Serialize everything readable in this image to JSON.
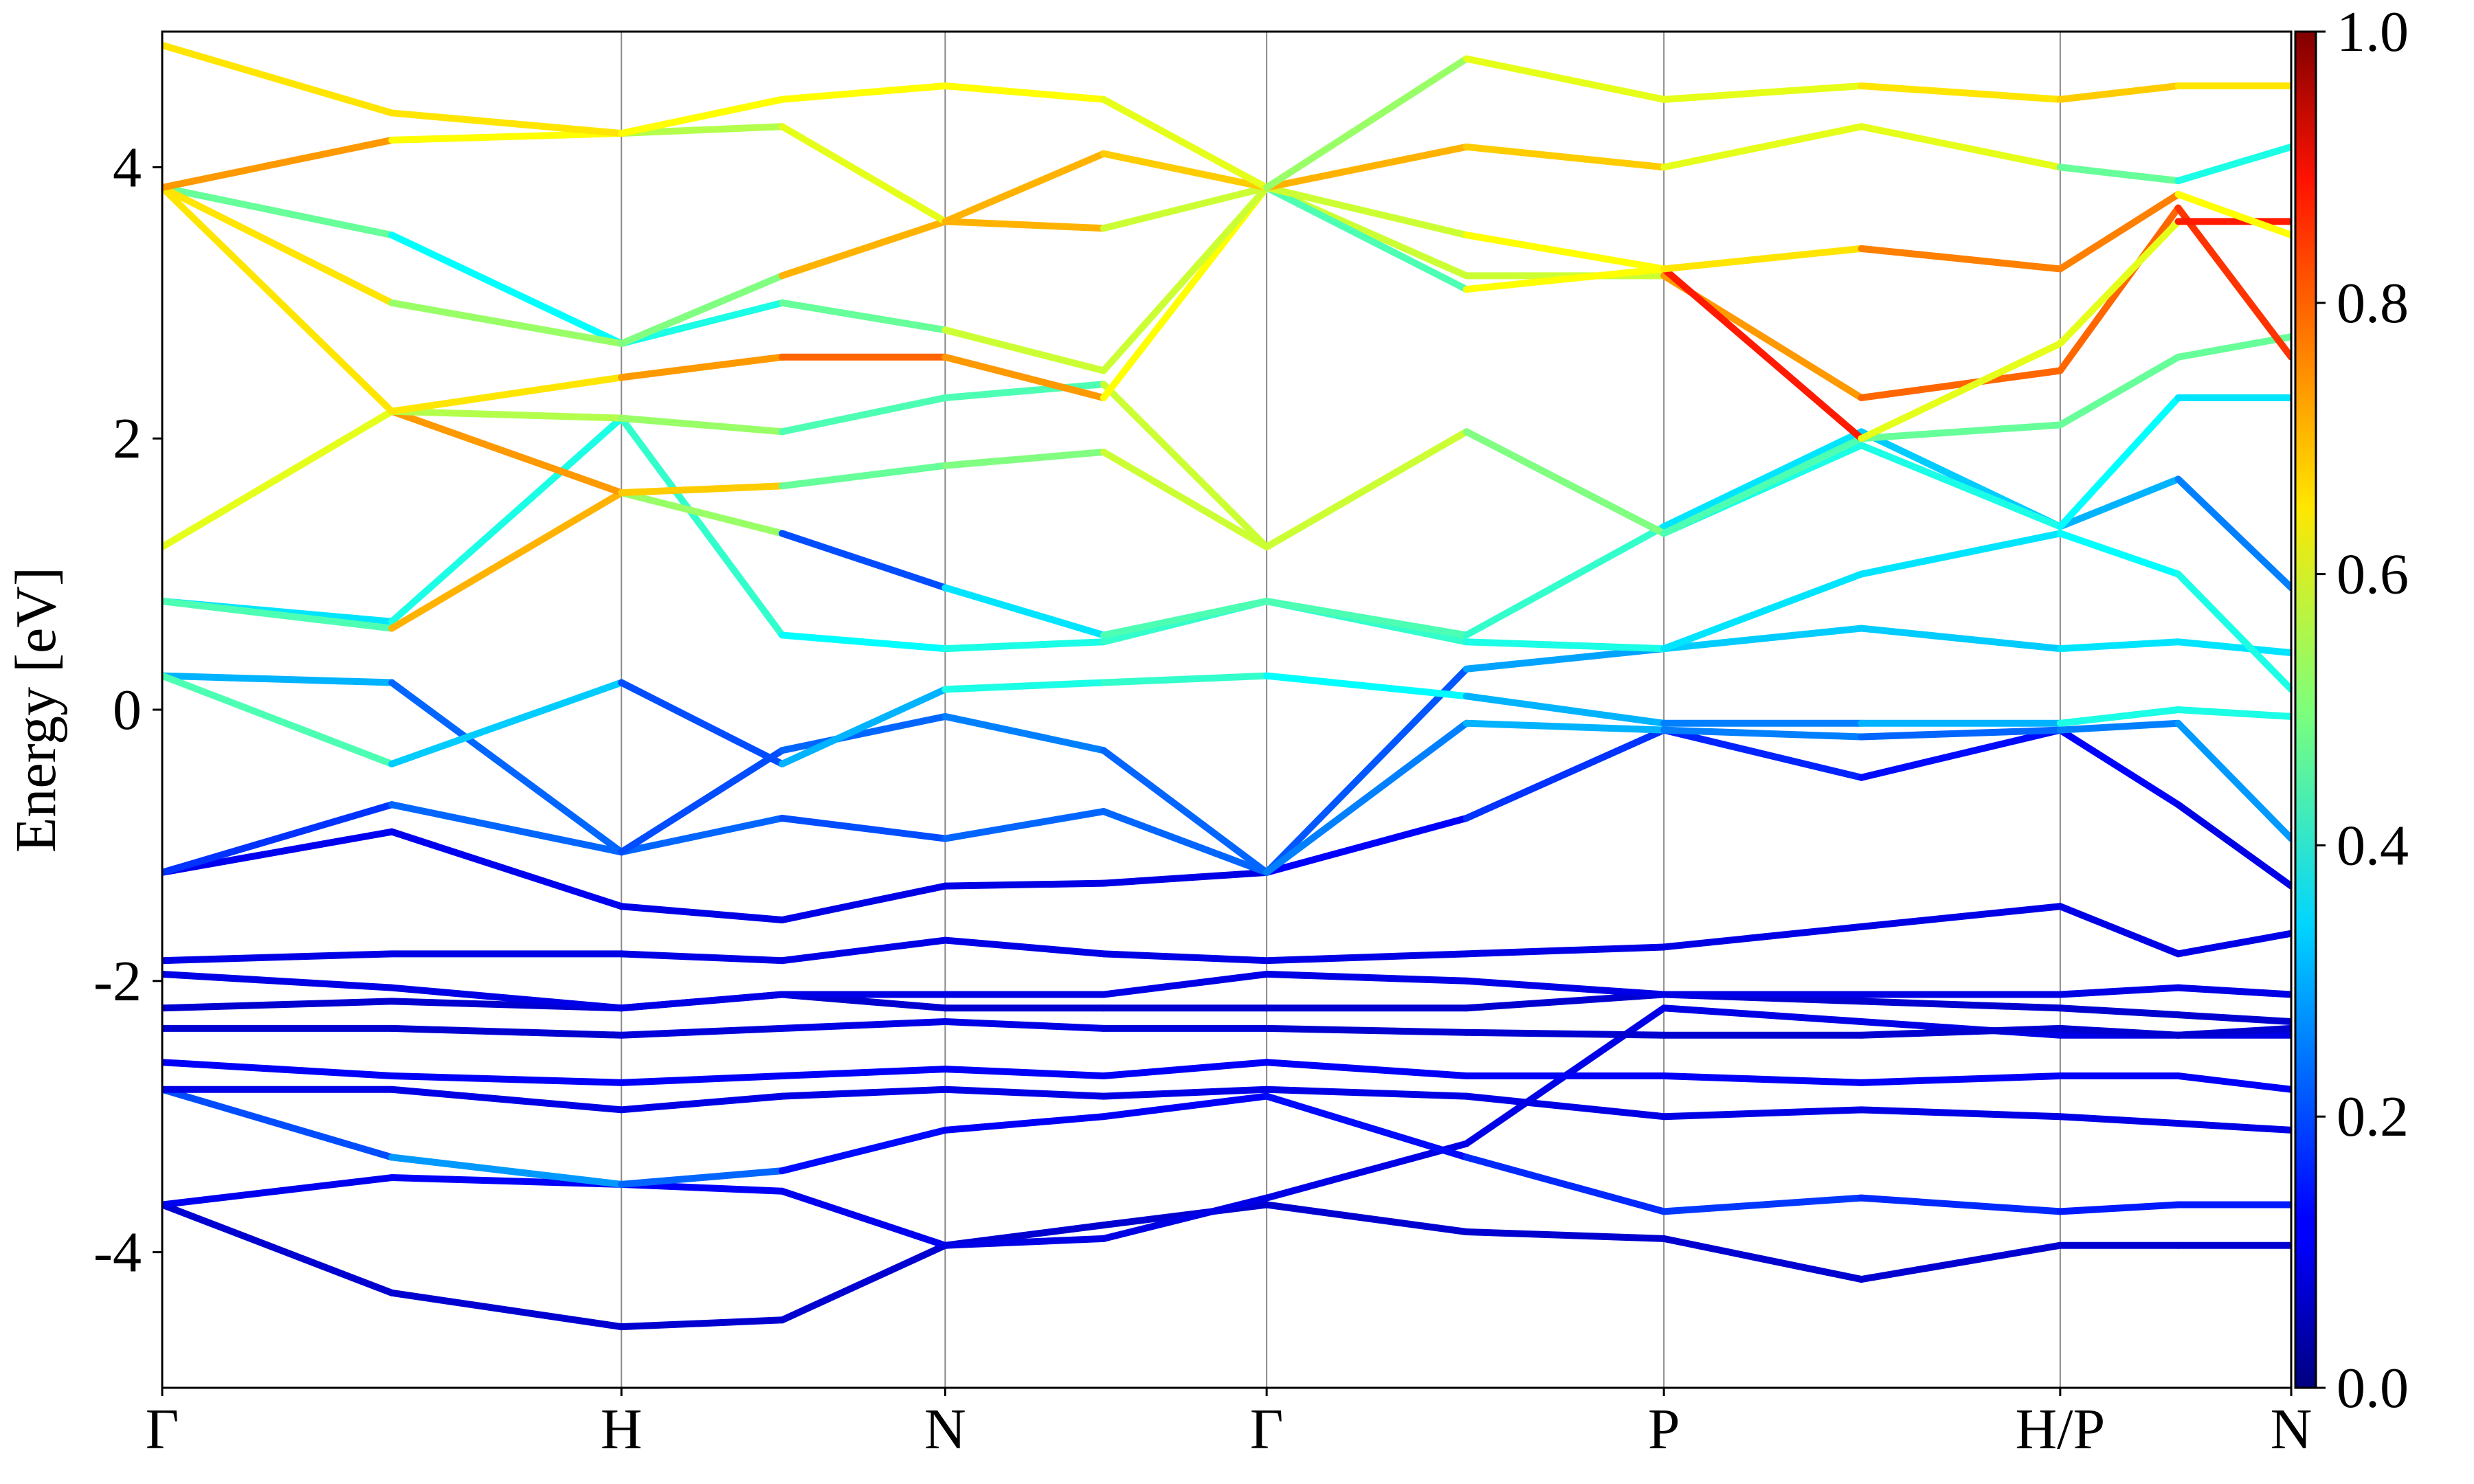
{
  "chart_data": {
    "type": "line",
    "y_label": "Energy [eV]",
    "x": [
      0,
      0.5,
      1.0,
      1.35,
      1.705,
      2.05,
      2.405,
      2.84,
      3.27,
      3.7,
      4.133,
      4.39,
      4.636
    ],
    "xlim": [
      0,
      4.636
    ],
    "xticks": [
      {
        "value": 0,
        "label": "Γ"
      },
      {
        "value": 1.0,
        "label": "H"
      },
      {
        "value": 1.705,
        "label": "N"
      },
      {
        "value": 2.405,
        "label": "Γ"
      },
      {
        "value": 3.27,
        "label": "P"
      },
      {
        "value": 4.133,
        "label": "H/P"
      },
      {
        "value": 4.636,
        "label": "N"
      }
    ],
    "ylim": [
      -5,
      5
    ],
    "yticks": [
      -4,
      -2,
      0,
      2,
      4
    ],
    "colormap": "jet",
    "clim": [
      0,
      1
    ],
    "cticks": [
      {
        "value": 0,
        "label": "0.0"
      },
      {
        "value": 0.2,
        "label": "0.2"
      },
      {
        "value": 0.4,
        "label": "0.4"
      },
      {
        "value": 0.6,
        "label": "0.6"
      },
      {
        "value": 0.8,
        "label": "0.8"
      },
      {
        "value": 1,
        "label": "1.0"
      }
    ],
    "series": [
      {
        "values": [
          -3.65,
          -4.3,
          -4.55,
          -4.5,
          -3.95,
          -3.8,
          -3.65,
          -3.85,
          -3.9,
          -4.2,
          -3.95,
          -3.95,
          -3.95
        ],
        "weights": [
          0.08,
          0.08,
          0.08,
          0.08,
          0.08,
          0.08,
          0.08,
          0.08,
          0.08,
          0.08,
          0.08,
          0.08,
          0.08
        ]
      },
      {
        "values": [
          -3.65,
          -3.45,
          -3.5,
          -3.55,
          -3.95,
          -3.9,
          -3.6,
          -3.2,
          -2.2,
          -2.3,
          -2.4,
          -2.4,
          -2.4
        ],
        "weights": [
          0.1,
          0.12,
          0.12,
          0.12,
          0.1,
          0.1,
          0.1,
          0.1,
          0.1,
          0.1,
          0.1,
          0.1,
          0.1
        ]
      },
      {
        "values": [
          -2.8,
          -3.3,
          -3.5,
          -3.4,
          -3.1,
          -3.0,
          -2.85,
          -3.3,
          -3.7,
          -3.6,
          -3.7,
          -3.65,
          -3.65
        ],
        "weights": [
          0.15,
          0.25,
          0.3,
          0.15,
          0.12,
          0.12,
          0.12,
          0.15,
          0.18,
          0.18,
          0.15,
          0.15,
          0.15
        ]
      },
      {
        "values": [
          -2.8,
          -2.8,
          -2.95,
          -2.85,
          -2.8,
          -2.85,
          -2.8,
          -2.85,
          -3.0,
          -2.95,
          -3.0,
          -3.05,
          -3.1
        ],
        "weights": [
          0.1,
          0.1,
          0.1,
          0.1,
          0.1,
          0.1,
          0.1,
          0.1,
          0.1,
          0.1,
          0.1,
          0.1,
          0.1
        ]
      },
      {
        "values": [
          -2.6,
          -2.7,
          -2.75,
          -2.7,
          -2.65,
          -2.7,
          -2.6,
          -2.7,
          -2.7,
          -2.75,
          -2.7,
          -2.7,
          -2.8
        ],
        "weights": [
          0.12,
          0.12,
          0.12,
          0.12,
          0.12,
          0.12,
          0.12,
          0.12,
          0.12,
          0.12,
          0.12,
          0.12,
          0.12
        ]
      },
      {
        "values": [
          -2.35,
          -2.35,
          -2.4,
          -2.35,
          -2.3,
          -2.35,
          -2.35,
          -2.38,
          -2.4,
          -2.4,
          -2.35,
          -2.4,
          -2.35
        ],
        "weights": [
          0.08,
          0.08,
          0.08,
          0.1,
          0.1,
          0.1,
          0.08,
          0.08,
          0.08,
          0.08,
          0.08,
          0.08,
          0.08
        ]
      },
      {
        "values": [
          -2.2,
          -2.15,
          -2.2,
          -2.1,
          -2.2,
          -2.2,
          -2.2,
          -2.2,
          -2.1,
          -2.15,
          -2.2,
          -2.25,
          -2.3
        ],
        "weights": [
          0.08,
          0.08,
          0.08,
          0.08,
          0.08,
          0.08,
          0.08,
          0.08,
          0.08,
          0.08,
          0.08,
          0.08,
          0.08
        ]
      },
      {
        "values": [
          -1.95,
          -2.05,
          -2.2,
          -2.1,
          -2.1,
          -2.1,
          -1.95,
          -2.0,
          -2.1,
          -2.1,
          -2.1,
          -2.05,
          -2.1
        ],
        "weights": [
          0.1,
          0.1,
          0.1,
          0.1,
          0.1,
          0.1,
          0.1,
          0.1,
          0.1,
          0.1,
          0.1,
          0.1,
          0.1
        ]
      },
      {
        "values": [
          -1.85,
          -1.8,
          -1.8,
          -1.85,
          -1.7,
          -1.8,
          -1.85,
          -1.8,
          -1.75,
          -1.6,
          -1.45,
          -1.8,
          -1.65
        ],
        "weights": [
          0.1,
          0.1,
          0.1,
          0.1,
          0.1,
          0.1,
          0.1,
          0.1,
          0.1,
          0.1,
          0.1,
          0.1,
          0.1
        ]
      },
      {
        "values": [
          -1.2,
          -0.9,
          -1.45,
          -1.55,
          -1.3,
          -1.28,
          -1.2,
          -0.8,
          -0.15,
          -0.5,
          -0.15,
          -0.7,
          -1.3
        ],
        "weights": [
          0.1,
          0.12,
          0.1,
          0.1,
          0.1,
          0.1,
          0.1,
          0.15,
          0.2,
          0.12,
          0.15,
          0.1,
          0.1
        ]
      },
      {
        "values": [
          -1.2,
          -0.7,
          -1.05,
          -0.8,
          -0.95,
          -0.75,
          -1.2,
          0.3,
          0.45,
          0.6,
          0.45,
          0.5,
          0.42
        ],
        "weights": [
          0.15,
          0.2,
          0.25,
          0.2,
          0.2,
          0.25,
          0.2,
          0.22,
          0.35,
          0.3,
          0.35,
          0.35,
          0.35
        ]
      },
      {
        "values": [
          0.25,
          0.2,
          -1.05,
          -0.3,
          -0.05,
          -0.3,
          -1.2,
          -0.1,
          -0.15,
          -0.2,
          -0.15,
          -0.1,
          -0.95
        ],
        "weights": [
          0.35,
          0.25,
          0.2,
          0.2,
          0.25,
          0.25,
          0.2,
          0.3,
          0.3,
          0.2,
          0.25,
          0.25,
          0.3
        ]
      },
      {
        "values": [
          0.25,
          -0.4,
          0.2,
          -0.4,
          0.15,
          0.2,
          0.25,
          0.1,
          -0.1,
          -0.1,
          -0.1,
          0.0,
          -0.05
        ],
        "weights": [
          0.45,
          0.45,
          0.2,
          0.2,
          0.4,
          0.4,
          0.45,
          0.3,
          0.3,
          0.2,
          0.4,
          0.4,
          0.4
        ]
      },
      {
        "values": [
          0.8,
          0.65,
          2.15,
          0.55,
          0.45,
          0.5,
          0.8,
          0.5,
          0.45,
          1.0,
          1.3,
          1.0,
          0.15
        ],
        "weights": [
          0.35,
          0.35,
          0.45,
          0.4,
          0.35,
          0.45,
          0.4,
          0.45,
          0.35,
          0.35,
          0.35,
          0.4,
          0.4
        ]
      },
      {
        "values": [
          0.8,
          0.6,
          1.6,
          1.3,
          0.9,
          0.55,
          0.8,
          0.55,
          1.35,
          2.05,
          1.35,
          1.7,
          0.9
        ],
        "weights": [
          0.35,
          0.55,
          0.85,
          0.2,
          0.2,
          0.5,
          0.4,
          0.5,
          0.35,
          0.35,
          0.3,
          0.3,
          0.2
        ]
      },
      {
        "values": [
          1.2,
          2.2,
          1.6,
          1.65,
          1.8,
          1.9,
          1.2,
          2.05,
          1.3,
          1.95,
          1.35,
          2.3,
          2.3
        ],
        "weights": [
          0.6,
          0.6,
          0.85,
          0.5,
          0.45,
          0.55,
          0.6,
          0.55,
          0.4,
          0.4,
          0.4,
          0.35,
          0.35
        ]
      },
      {
        "values": [
          1.2,
          2.2,
          2.15,
          2.05,
          2.3,
          2.4,
          1.2,
          2.05,
          1.3,
          2.0,
          2.1,
          2.6,
          2.75
        ],
        "weights": [
          0.6,
          0.6,
          0.5,
          0.55,
          0.35,
          0.55,
          0.6,
          0.55,
          0.45,
          0.45,
          0.5,
          0.45,
          0.5
        ]
      },
      {
        "values": [
          3.85,
          2.2,
          2.45,
          2.6,
          2.6,
          2.3,
          3.85,
          3.2,
          3.2,
          2.3,
          2.5,
          3.7,
          2.6
        ],
        "weights": [
          0.7,
          0.6,
          0.7,
          0.75,
          0.8,
          0.65,
          0.6,
          0.55,
          0.6,
          0.85,
          0.7,
          0.85,
          0.8
        ]
      },
      {
        "values": [
          3.85,
          3.5,
          2.7,
          3.0,
          2.8,
          2.5,
          3.85,
          3.1,
          3.25,
          2.0,
          2.7,
          3.6,
          3.6
        ],
        "weights": [
          0.55,
          0.4,
          0.35,
          0.45,
          0.5,
          0.65,
          0.5,
          0.4,
          0.85,
          0.85,
          0.35,
          0.85,
          0.85
        ]
      },
      {
        "values": [
          3.85,
          3.0,
          2.7,
          3.2,
          3.6,
          3.55,
          3.85,
          3.5,
          3.25,
          3.4,
          3.25,
          3.8,
          3.5
        ],
        "weights": [
          0.65,
          0.65,
          0.4,
          0.6,
          0.8,
          0.6,
          0.55,
          0.6,
          0.65,
          0.65,
          0.85,
          0.65,
          0.6
        ]
      },
      {
        "values": [
          3.85,
          4.2,
          4.25,
          4.3,
          3.6,
          4.1,
          3.85,
          4.15,
          4.0,
          4.3,
          4.0,
          3.9,
          4.15
        ],
        "weights": [
          0.7,
          0.75,
          0.5,
          0.6,
          0.6,
          0.8,
          0.55,
          0.85,
          0.5,
          0.7,
          0.5,
          0.45,
          0.35
        ]
      },
      {
        "values": [
          4.9,
          4.4,
          4.25,
          4.5,
          4.6,
          4.5,
          3.85,
          4.8,
          4.5,
          4.6,
          4.5,
          4.6,
          4.6
        ],
        "weights": [
          0.55,
          0.75,
          0.55,
          0.7,
          0.55,
          0.7,
          0.5,
          0.55,
          0.65,
          0.55,
          0.75,
          0.6,
          0.7
        ]
      }
    ]
  }
}
